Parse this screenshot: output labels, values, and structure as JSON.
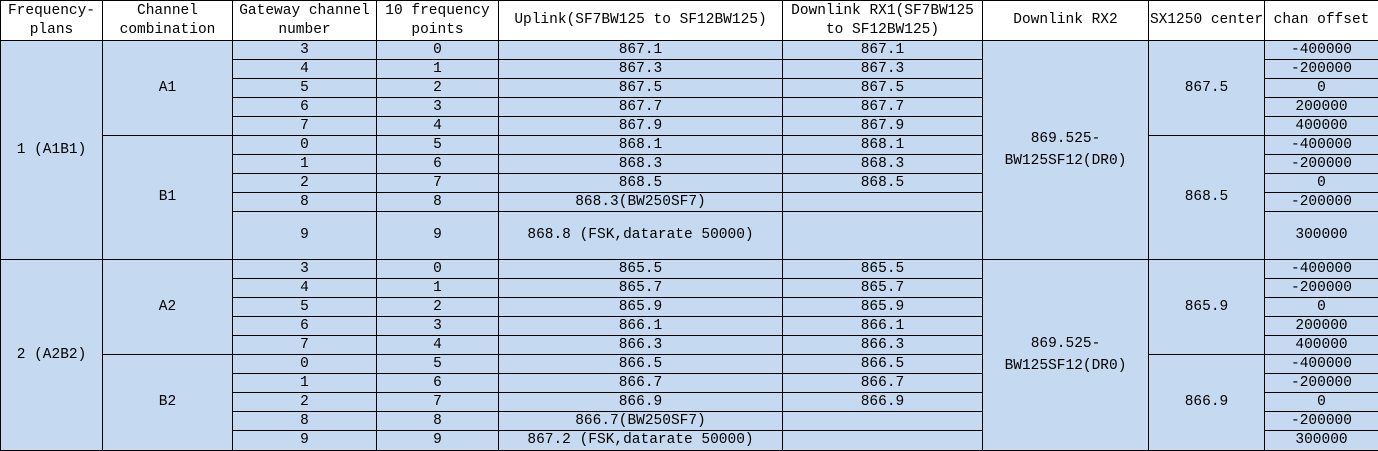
{
  "headers": [
    "Frequency-plans",
    "Channel combination",
    "Gateway channel number",
    "10 frequency points",
    "Uplink(SF7BW125 to SF12BW125)",
    "Downlink RX1(SF7BW125 to SF12BW125)",
    "Downlink RX2",
    "SX1250 center",
    "chan offset"
  ],
  "colors": {
    "cell_bg": "#c5d9f1",
    "header_bg": "#ffffff",
    "border": "#000000"
  },
  "plans": [
    {
      "label": "1 (A1B1)",
      "rx2": "869.525-BW125SF12(DR0)",
      "groups": [
        {
          "combination": "A1",
          "center": "867.5",
          "rows": [
            {
              "gw": "3",
              "fp": "0",
              "uplink": "867.1",
              "rx1": "867.1",
              "offset": "-400000"
            },
            {
              "gw": "4",
              "fp": "1",
              "uplink": "867.3",
              "rx1": "867.3",
              "offset": "-200000"
            },
            {
              "gw": "5",
              "fp": "2",
              "uplink": "867.5",
              "rx1": "867.5",
              "offset": "0"
            },
            {
              "gw": "6",
              "fp": "3",
              "uplink": "867.7",
              "rx1": "867.7",
              "offset": "200000"
            },
            {
              "gw": "7",
              "fp": "4",
              "uplink": "867.9",
              "rx1": "867.9",
              "offset": "400000"
            }
          ]
        },
        {
          "combination": "B1",
          "center": "868.5",
          "rows": [
            {
              "gw": "0",
              "fp": "5",
              "uplink": "868.1",
              "rx1": "868.1",
              "offset": "-400000"
            },
            {
              "gw": "1",
              "fp": "6",
              "uplink": "868.3",
              "rx1": "868.3",
              "offset": "-200000"
            },
            {
              "gw": "2",
              "fp": "7",
              "uplink": "868.5",
              "rx1": "868.5",
              "offset": "0"
            },
            {
              "gw": "8",
              "fp": "8",
              "uplink": "868.3(BW250SF7)",
              "rx1": "",
              "offset": "-200000"
            },
            {
              "gw": "9",
              "fp": "9",
              "uplink": "868.8 (FSK,datarate 50000)",
              "rx1": "",
              "offset": "300000"
            }
          ]
        }
      ]
    },
    {
      "label": "2 (A2B2)",
      "rx2": "869.525-BW125SF12(DR0)",
      "groups": [
        {
          "combination": "A2",
          "center": "865.9",
          "rows": [
            {
              "gw": "3",
              "fp": "0",
              "uplink": "865.5",
              "rx1": "865.5",
              "offset": "-400000"
            },
            {
              "gw": "4",
              "fp": "1",
              "uplink": "865.7",
              "rx1": "865.7",
              "offset": "-200000"
            },
            {
              "gw": "5",
              "fp": "2",
              "uplink": "865.9",
              "rx1": "865.9",
              "offset": "0"
            },
            {
              "gw": "6",
              "fp": "3",
              "uplink": "866.1",
              "rx1": "866.1",
              "offset": "200000"
            },
            {
              "gw": "7",
              "fp": "4",
              "uplink": "866.3",
              "rx1": "866.3",
              "offset": "400000"
            }
          ]
        },
        {
          "combination": "B2",
          "center": "866.9",
          "rows": [
            {
              "gw": "0",
              "fp": "5",
              "uplink": "866.5",
              "rx1": "866.5",
              "offset": "-400000"
            },
            {
              "gw": "1",
              "fp": "6",
              "uplink": "866.7",
              "rx1": "866.7",
              "offset": "-200000"
            },
            {
              "gw": "2",
              "fp": "7",
              "uplink": "866.9",
              "rx1": "866.9",
              "offset": "0"
            },
            {
              "gw": "8",
              "fp": "8",
              "uplink": "866.7(BW250SF7)",
              "rx1": "",
              "offset": "-200000"
            },
            {
              "gw": "9",
              "fp": "9",
              "uplink": "867.2 (FSK,datarate 50000)",
              "rx1": "",
              "offset": "300000"
            }
          ]
        }
      ]
    }
  ]
}
